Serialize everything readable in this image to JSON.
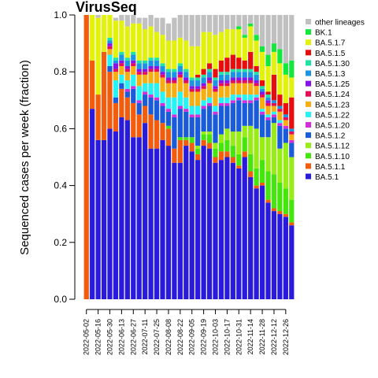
{
  "chart_data": {
    "type": "bar",
    "stacked": true,
    "title": "VirusSeq",
    "xlabel": "",
    "ylabel": "Sequenced cases per week (fraction)",
    "ylim": [
      0,
      1
    ],
    "yticks": [
      "0.0",
      "0.2",
      "0.4",
      "0.6",
      "0.8",
      "1.0"
    ],
    "legend_position": "top-right",
    "x_tick_labels": [
      "2022-05-02",
      "2022-05-16",
      "2022-05-30",
      "2022-06-13",
      "2022-06-27",
      "2022-07-11",
      "2022-07-25",
      "2022-08-08",
      "2022-08-22",
      "2022-09-05",
      "2022-09-19",
      "2022-10-03",
      "2022-10-17",
      "2022-10-31",
      "2022-11-14",
      "2022-11-28",
      "2022-12-12",
      "2022-12-26"
    ],
    "categories": [
      "2022-05-02",
      "2022-05-09",
      "2022-05-16",
      "2022-05-23",
      "2022-05-30",
      "2022-06-06",
      "2022-06-13",
      "2022-06-20",
      "2022-06-27",
      "2022-07-04",
      "2022-07-11",
      "2022-07-18",
      "2022-07-25",
      "2022-08-01",
      "2022-08-08",
      "2022-08-15",
      "2022-08-22",
      "2022-08-29",
      "2022-09-05",
      "2022-09-12",
      "2022-09-19",
      "2022-09-26",
      "2022-10-03",
      "2022-10-10",
      "2022-10-17",
      "2022-10-24",
      "2022-10-31",
      "2022-11-07",
      "2022-11-14",
      "2022-11-21",
      "2022-11-28",
      "2022-12-05",
      "2022-12-12",
      "2022-12-19",
      "2022-12-26",
      "2023-01-02"
    ],
    "series": [
      {
        "name": "BA.5.1",
        "color": "#2a1adb",
        "values": [
          0.0,
          0.67,
          0.56,
          0.56,
          0.6,
          0.59,
          0.64,
          0.63,
          0.57,
          0.57,
          0.62,
          0.53,
          0.53,
          0.56,
          0.54,
          0.48,
          0.48,
          0.54,
          0.52,
          0.49,
          0.54,
          0.53,
          0.48,
          0.49,
          0.5,
          0.48,
          0.46,
          0.5,
          0.43,
          0.39,
          0.4,
          0.34,
          0.31,
          0.3,
          0.29,
          0.26
        ]
      },
      {
        "name": "BA.5.1.1",
        "color": "#f25c0c",
        "values": [
          1.0,
          0.17,
          0.16,
          0.31,
          0.2,
          0.1,
          0.1,
          0.08,
          0.12,
          0.08,
          0.06,
          0.12,
          0.1,
          0.06,
          0.06,
          0.05,
          0.08,
          0.02,
          0.03,
          0.02,
          0.02,
          0.02,
          0.02,
          0.03,
          0.02,
          0.02,
          0.01,
          0.02,
          0.02,
          0.01,
          0.01,
          0.01,
          0.01,
          0.01,
          0.01,
          0.01
        ]
      },
      {
        "name": "BA.5.1.10",
        "color": "#44e60c",
        "values": [
          0.0,
          0.0,
          0.0,
          0.0,
          0.0,
          0.0,
          0.0,
          0.0,
          0.0,
          0.0,
          0.0,
          0.0,
          0.0,
          0.0,
          0.01,
          0.0,
          0.01,
          0.01,
          0.02,
          0.02,
          0.02,
          0.03,
          0.03,
          0.03,
          0.04,
          0.04,
          0.04,
          0.05,
          0.06,
          0.06,
          0.08,
          0.1,
          0.12,
          0.1,
          0.09,
          0.08
        ]
      },
      {
        "name": "BA.5.1.12",
        "color": "#99ed17",
        "values": [
          0.0,
          0.0,
          0.0,
          0.0,
          0.0,
          0.0,
          0.0,
          0.0,
          0.0,
          0.0,
          0.0,
          0.0,
          0.0,
          0.0,
          0.0,
          0.0,
          0.0,
          0.0,
          0.0,
          0.01,
          0.01,
          0.01,
          0.02,
          0.03,
          0.04,
          0.05,
          0.08,
          0.04,
          0.1,
          0.14,
          0.08,
          0.12,
          0.18,
          0.12,
          0.16,
          0.15
        ]
      },
      {
        "name": "BA.5.1.2",
        "color": "#1a5bd9",
        "values": [
          0.0,
          0.0,
          0.0,
          0.0,
          0.02,
          0.02,
          0.02,
          0.02,
          0.05,
          0.04,
          0.04,
          0.06,
          0.07,
          0.06,
          0.05,
          0.11,
          0.1,
          0.09,
          0.07,
          0.1,
          0.08,
          0.09,
          0.1,
          0.1,
          0.08,
          0.1,
          0.11,
          0.08,
          0.08,
          0.1,
          0.08,
          0.06,
          0.02,
          0.08,
          0.05,
          0.05
        ]
      },
      {
        "name": "BA.5.1.20",
        "color": "#d42edc",
        "values": [
          0.0,
          0.0,
          0.0,
          0.0,
          0.0,
          0.0,
          0.0,
          0.01,
          0.01,
          0.01,
          0.01,
          0.01,
          0.01,
          0.01,
          0.01,
          0.01,
          0.01,
          0.01,
          0.01,
          0.01,
          0.01,
          0.01,
          0.01,
          0.01,
          0.01,
          0.01,
          0.01,
          0.01,
          0.01,
          0.01,
          0.01,
          0.01,
          0.01,
          0.01,
          0.01,
          0.01
        ]
      },
      {
        "name": "BA.5.1.22",
        "color": "#27f2f4",
        "values": [
          0.0,
          0.0,
          0.0,
          0.0,
          0.04,
          0.06,
          0.03,
          0.03,
          0.04,
          0.05,
          0.03,
          0.04,
          0.05,
          0.04,
          0.04,
          0.06,
          0.05,
          0.04,
          0.03,
          0.03,
          0.02,
          0.02,
          0.02,
          0.02,
          0.02,
          0.02,
          0.01,
          0.02,
          0.02,
          0.01,
          0.01,
          0.01,
          0.01,
          0.01,
          0.0,
          0.0
        ]
      },
      {
        "name": "BA.5.1.23",
        "color": "#f7ae12",
        "values": [
          0.0,
          0.0,
          0.0,
          0.0,
          0.02,
          0.03,
          0.03,
          0.03,
          0.03,
          0.04,
          0.03,
          0.04,
          0.04,
          0.05,
          0.05,
          0.05,
          0.05,
          0.05,
          0.05,
          0.05,
          0.04,
          0.05,
          0.05,
          0.04,
          0.04,
          0.04,
          0.04,
          0.04,
          0.04,
          0.03,
          0.04,
          0.03,
          0.02,
          0.03,
          0.02,
          0.02
        ]
      },
      {
        "name": "BA.5.1.24",
        "color": "#e50c58",
        "values": [
          0.0,
          0.0,
          0.0,
          0.0,
          0.01,
          0.01,
          0.01,
          0.01,
          0.01,
          0.01,
          0.01,
          0.01,
          0.01,
          0.01,
          0.01,
          0.01,
          0.01,
          0.01,
          0.01,
          0.01,
          0.01,
          0.01,
          0.01,
          0.01,
          0.01,
          0.01,
          0.01,
          0.01,
          0.01,
          0.01,
          0.01,
          0.01,
          0.01,
          0.01,
          0.01,
          0.01
        ]
      },
      {
        "name": "BA.5.1.25",
        "color": "#8613e8",
        "values": [
          0.0,
          0.0,
          0.0,
          0.0,
          0.01,
          0.02,
          0.01,
          0.01,
          0.01,
          0.01,
          0.01,
          0.01,
          0.01,
          0.01,
          0.01,
          0.01,
          0.01,
          0.01,
          0.01,
          0.01,
          0.01,
          0.01,
          0.01,
          0.01,
          0.01,
          0.01,
          0.01,
          0.01,
          0.01,
          0.01,
          0.01,
          0.01,
          0.0,
          0.0,
          0.0,
          0.0
        ]
      },
      {
        "name": "BA.5.1.3",
        "color": "#1b95e3",
        "values": [
          0.0,
          0.0,
          0.0,
          0.0,
          0.01,
          0.01,
          0.02,
          0.02,
          0.02,
          0.02,
          0.02,
          0.02,
          0.02,
          0.02,
          0.02,
          0.02,
          0.02,
          0.02,
          0.02,
          0.02,
          0.02,
          0.02,
          0.02,
          0.02,
          0.02,
          0.02,
          0.02,
          0.02,
          0.02,
          0.02,
          0.01,
          0.01,
          0.01,
          0.01,
          0.01,
          0.01
        ]
      },
      {
        "name": "BA.5.1.30",
        "color": "#1ee3a5",
        "values": [
          0.0,
          0.0,
          0.0,
          0.0,
          0.01,
          0.01,
          0.01,
          0.01,
          0.01,
          0.01,
          0.01,
          0.01,
          0.01,
          0.01,
          0.01,
          0.01,
          0.01,
          0.01,
          0.01,
          0.01,
          0.01,
          0.01,
          0.01,
          0.01,
          0.01,
          0.01,
          0.01,
          0.01,
          0.01,
          0.01,
          0.01,
          0.01,
          0.0,
          0.0,
          0.0,
          0.0
        ]
      },
      {
        "name": "BA.5.1.5",
        "color": "#e80c0c",
        "values": [
          0.0,
          0.0,
          0.0,
          0.0,
          0.0,
          0.0,
          0.0,
          0.0,
          0.0,
          0.0,
          0.0,
          0.0,
          0.0,
          0.0,
          0.0,
          0.0,
          0.0,
          0.0,
          0.0,
          0.01,
          0.02,
          0.02,
          0.03,
          0.04,
          0.05,
          0.05,
          0.04,
          0.03,
          0.06,
          0.02,
          0.02,
          0.01,
          0.09,
          0.04,
          0.04,
          0.11
        ]
      },
      {
        "name": "BA.5.1.7",
        "color": "#e3f20c",
        "values": [
          0.0,
          0.16,
          0.27,
          0.13,
          0.08,
          0.13,
          0.11,
          0.11,
          0.1,
          0.13,
          0.11,
          0.11,
          0.09,
          0.1,
          0.1,
          0.1,
          0.09,
          0.1,
          0.11,
          0.1,
          0.13,
          0.11,
          0.12,
          0.1,
          0.1,
          0.09,
          0.1,
          0.08,
          0.09,
          0.09,
          0.1,
          0.09,
          0.08,
          0.11,
          0.1,
          0.07
        ]
      },
      {
        "name": "BK.1",
        "color": "#12e83c",
        "values": [
          0.0,
          0.0,
          0.0,
          0.0,
          0.0,
          0.0,
          0.0,
          0.0,
          0.0,
          0.0,
          0.0,
          0.0,
          0.0,
          0.0,
          0.0,
          0.0,
          0.0,
          0.0,
          0.0,
          0.0,
          0.0,
          0.0,
          0.0,
          0.0,
          0.0,
          0.0,
          0.01,
          0.01,
          0.01,
          0.02,
          0.02,
          0.04,
          0.03,
          0.05,
          0.04,
          0.06
        ]
      },
      {
        "name": "other lineages",
        "color": "#c0c0c0",
        "values": [
          0.0,
          0.0,
          0.01,
          0.0,
          0.0,
          0.01,
          0.02,
          0.04,
          0.03,
          0.02,
          0.04,
          0.04,
          0.05,
          0.06,
          0.06,
          0.08,
          0.08,
          0.09,
          0.11,
          0.11,
          0.06,
          0.09,
          0.07,
          0.07,
          0.06,
          0.05,
          0.05,
          0.09,
          0.05,
          0.08,
          0.12,
          0.15,
          0.11,
          0.13,
          0.17,
          0.16
        ]
      }
    ]
  }
}
